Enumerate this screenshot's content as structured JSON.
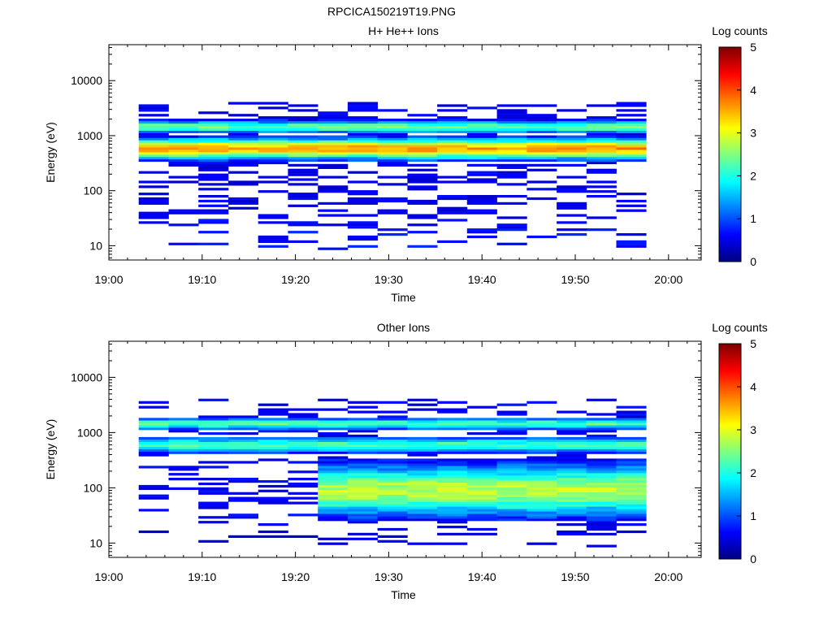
{
  "figure_title": "RPCICA150219T19.PNG",
  "chart_data": [
    {
      "type": "heatmap",
      "title": "H+ He++ Ions",
      "xlabel": "Time",
      "ylabel": "Energy (eV)",
      "x_ticks": [
        "19:00",
        "19:10",
        "19:20",
        "19:30",
        "19:40",
        "19:50",
        "20:00"
      ],
      "y_ticks": [
        "10",
        "100",
        "1000",
        "10000"
      ],
      "y_scale": "log",
      "y_range": [
        5.5,
        45000
      ],
      "x_range_minutes": [
        0,
        63.5
      ],
      "data_start_minute": 3.2,
      "time_bin_minutes": 3.2,
      "energy_min_ev": 8.4,
      "energy_ratio_per_bin": 1.105,
      "energy_bins": 62,
      "colorbar": {
        "label": "Log counts",
        "ticks": [
          "0",
          "1",
          "2",
          "3",
          "4",
          "5"
        ],
        "range": [
          0,
          5
        ],
        "colormap": "jet"
      },
      "profile": {
        "core_peak_ev": 580,
        "core_peak_log": 3.6,
        "core_width_dex": 0.13,
        "secondary_peak_ev": 1450,
        "secondary_peak_log": 2.4,
        "secondary_width_dex": 0.08,
        "background_log": 0.35,
        "low_energy_log": 0.5
      }
    },
    {
      "type": "heatmap",
      "title": "Other Ions",
      "xlabel": "Time",
      "ylabel": "Energy (eV)",
      "x_ticks": [
        "19:00",
        "19:10",
        "19:20",
        "19:30",
        "19:40",
        "19:50",
        "20:00"
      ],
      "y_ticks": [
        "10",
        "100",
        "1000",
        "10000"
      ],
      "y_scale": "log",
      "y_range": [
        5.5,
        45000
      ],
      "x_range_minutes": [
        0,
        63.5
      ],
      "data_start_minute": 3.2,
      "time_bin_minutes": 3.2,
      "energy_min_ev": 8.4,
      "energy_ratio_per_bin": 1.105,
      "energy_bins": 62,
      "colorbar": {
        "label": "Log counts",
        "ticks": [
          "0",
          "1",
          "2",
          "3",
          "4",
          "5"
        ],
        "range": [
          0,
          5
        ],
        "colormap": "jet"
      },
      "profile": {
        "core_peak_ev": 600,
        "core_peak_log": 2.2,
        "core_width_dex": 0.1,
        "secondary_peak_ev": 1450,
        "secondary_peak_log": 2.3,
        "secondary_width_dex": 0.07,
        "broad_peak_ev": 90,
        "broad_peak_log": 2.8,
        "broad_start_minute": 22.4,
        "background_log": 0.4,
        "low_energy_log": 0.3
      }
    }
  ]
}
